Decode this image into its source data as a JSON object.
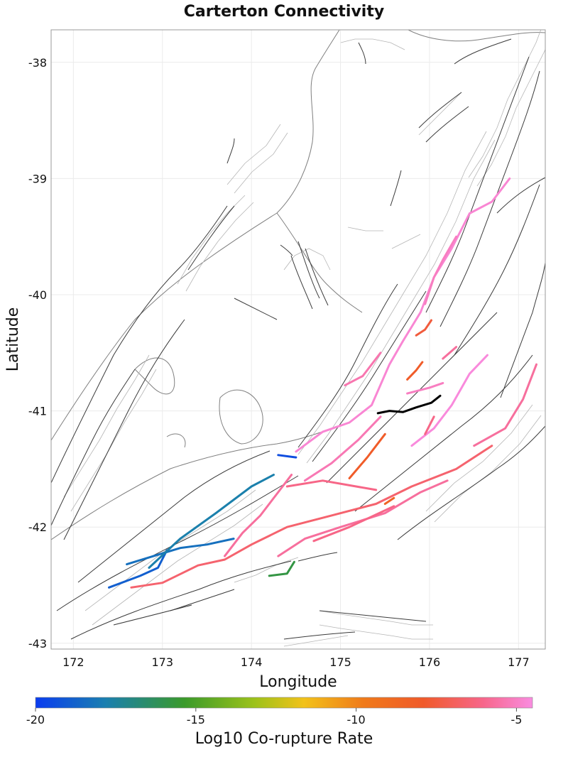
{
  "title": "Carterton Connectivity",
  "xlabel": "Longitude",
  "ylabel": "Latitude",
  "x_ticks": [
    "172",
    "173",
    "174",
    "175",
    "176",
    "177"
  ],
  "y_ticks": [
    "-38",
    "-39",
    "-40",
    "-41",
    "-42",
    "-43"
  ],
  "colorbar": {
    "label": "Log10 Co-rupture Rate",
    "ticks": [
      "-20",
      "-15",
      "-10",
      "-5"
    ],
    "range": [
      -20,
      -4.5
    ]
  },
  "colors": {
    "target_fault": "#000000",
    "cmap": [
      "#0a3cf0",
      "#1a7fb0",
      "#3a9a2a",
      "#9cc21a",
      "#f2c21a",
      "#f07a1a",
      "#f05a2a",
      "#f7668a",
      "#f98ce0"
    ]
  },
  "chart_data": {
    "type": "map",
    "x_range": [
      171.75,
      177.3
    ],
    "y_range": [
      -43.05,
      -37.72
    ],
    "target": {
      "name": "Carterton",
      "points": [
        [
          175.42,
          -41.02
        ],
        [
          175.55,
          -41.0
        ],
        [
          175.7,
          -41.01
        ],
        [
          175.85,
          -40.97
        ],
        [
          176.02,
          -40.93
        ],
        [
          176.12,
          -40.87
        ]
      ]
    },
    "ruptures": [
      {
        "rate": -19,
        "points": [
          [
            172.4,
            -42.52
          ],
          [
            172.75,
            -42.42
          ],
          [
            172.95,
            -42.35
          ],
          [
            173.05,
            -42.2
          ]
        ]
      },
      {
        "rate": -18.5,
        "points": [
          [
            172.6,
            -42.32
          ],
          [
            172.9,
            -42.25
          ],
          [
            173.2,
            -42.18
          ],
          [
            173.5,
            -42.15
          ],
          [
            173.8,
            -42.1
          ]
        ]
      },
      {
        "rate": -18,
        "points": [
          [
            172.85,
            -42.35
          ],
          [
            173.2,
            -42.1
          ],
          [
            173.6,
            -41.88
          ],
          [
            174.0,
            -41.65
          ],
          [
            174.25,
            -41.55
          ]
        ]
      },
      {
        "rate": -19.5,
        "points": [
          [
            174.3,
            -41.38
          ],
          [
            174.5,
            -41.4
          ]
        ]
      },
      {
        "rate": -16.5,
        "points": [
          [
            174.2,
            -42.42
          ],
          [
            174.4,
            -42.4
          ],
          [
            174.48,
            -42.3
          ]
        ]
      },
      {
        "rate": -7,
        "points": [
          [
            172.65,
            -42.52
          ],
          [
            173.0,
            -42.48
          ],
          [
            173.4,
            -42.33
          ],
          [
            173.7,
            -42.28
          ],
          [
            174.0,
            -42.15
          ],
          [
            174.4,
            -42.0
          ],
          [
            174.9,
            -41.9
          ],
          [
            175.4,
            -41.8
          ],
          [
            175.8,
            -41.65
          ],
          [
            176.3,
            -41.5
          ],
          [
            176.7,
            -41.3
          ]
        ]
      },
      {
        "rate": -6,
        "points": [
          [
            173.7,
            -42.25
          ],
          [
            173.9,
            -42.05
          ],
          [
            174.1,
            -41.9
          ],
          [
            174.3,
            -41.7
          ],
          [
            174.45,
            -41.55
          ]
        ]
      },
      {
        "rate": -6.5,
        "points": [
          [
            174.4,
            -41.65
          ],
          [
            174.8,
            -41.6
          ],
          [
            175.4,
            -41.68
          ]
        ]
      },
      {
        "rate": -6,
        "points": [
          [
            174.3,
            -42.25
          ],
          [
            174.6,
            -42.1
          ],
          [
            175.0,
            -42.0
          ],
          [
            175.5,
            -41.88
          ],
          [
            175.9,
            -41.7
          ],
          [
            176.2,
            -41.6
          ]
        ]
      },
      {
        "rate": -5.5,
        "points": [
          [
            174.6,
            -41.6
          ],
          [
            174.9,
            -41.45
          ],
          [
            175.2,
            -41.25
          ],
          [
            175.45,
            -41.05
          ]
        ]
      },
      {
        "rate": -6.5,
        "points": [
          [
            174.7,
            -42.12
          ],
          [
            175.1,
            -42.0
          ],
          [
            175.6,
            -41.82
          ]
        ]
      },
      {
        "rate": -6,
        "points": [
          [
            176.5,
            -41.3
          ],
          [
            176.85,
            -41.15
          ],
          [
            177.05,
            -40.9
          ],
          [
            177.2,
            -40.6
          ]
        ]
      },
      {
        "rate": -4.8,
        "points": [
          [
            174.5,
            -41.35
          ],
          [
            174.8,
            -41.18
          ],
          [
            175.1,
            -41.1
          ],
          [
            175.35,
            -40.95
          ],
          [
            175.55,
            -40.6
          ],
          [
            175.7,
            -40.4
          ],
          [
            175.9,
            -40.15
          ],
          [
            176.05,
            -39.85
          ],
          [
            176.25,
            -39.6
          ],
          [
            176.45,
            -39.3
          ],
          [
            176.7,
            -39.2
          ],
          [
            176.9,
            -39.0
          ]
        ]
      },
      {
        "rate": -5.2,
        "points": [
          [
            175.95,
            -40.08
          ],
          [
            176.05,
            -39.85
          ],
          [
            176.15,
            -39.7
          ],
          [
            176.3,
            -39.5
          ]
        ]
      },
      {
        "rate": -4.6,
        "points": [
          [
            175.8,
            -41.3
          ],
          [
            176.05,
            -41.15
          ],
          [
            176.25,
            -40.95
          ],
          [
            176.45,
            -40.68
          ],
          [
            176.65,
            -40.52
          ]
        ]
      },
      {
        "rate": -8.5,
        "points": [
          [
            175.1,
            -41.58
          ],
          [
            175.3,
            -41.4
          ],
          [
            175.5,
            -41.2
          ]
        ]
      },
      {
        "rate": -5.6,
        "points": [
          [
            175.05,
            -40.78
          ],
          [
            175.25,
            -40.7
          ],
          [
            175.45,
            -40.5
          ]
        ]
      },
      {
        "rate": -8,
        "points": [
          [
            175.85,
            -40.35
          ],
          [
            175.95,
            -40.3
          ],
          [
            176.02,
            -40.22
          ]
        ]
      },
      {
        "rate": -8.5,
        "points": [
          [
            175.75,
            -40.73
          ],
          [
            175.85,
            -40.65
          ],
          [
            175.92,
            -40.58
          ]
        ]
      },
      {
        "rate": -6,
        "points": [
          [
            176.15,
            -40.55
          ],
          [
            176.3,
            -40.45
          ]
        ]
      },
      {
        "rate": -5.2,
        "points": [
          [
            175.75,
            -40.85
          ],
          [
            176.0,
            -40.8
          ],
          [
            176.15,
            -40.76
          ]
        ]
      },
      {
        "rate": -6.5,
        "points": [
          [
            175.95,
            -41.2
          ],
          [
            176.05,
            -41.05
          ]
        ]
      },
      {
        "rate": -9,
        "points": [
          [
            175.5,
            -41.8
          ],
          [
            175.6,
            -41.75
          ]
        ]
      }
    ]
  }
}
